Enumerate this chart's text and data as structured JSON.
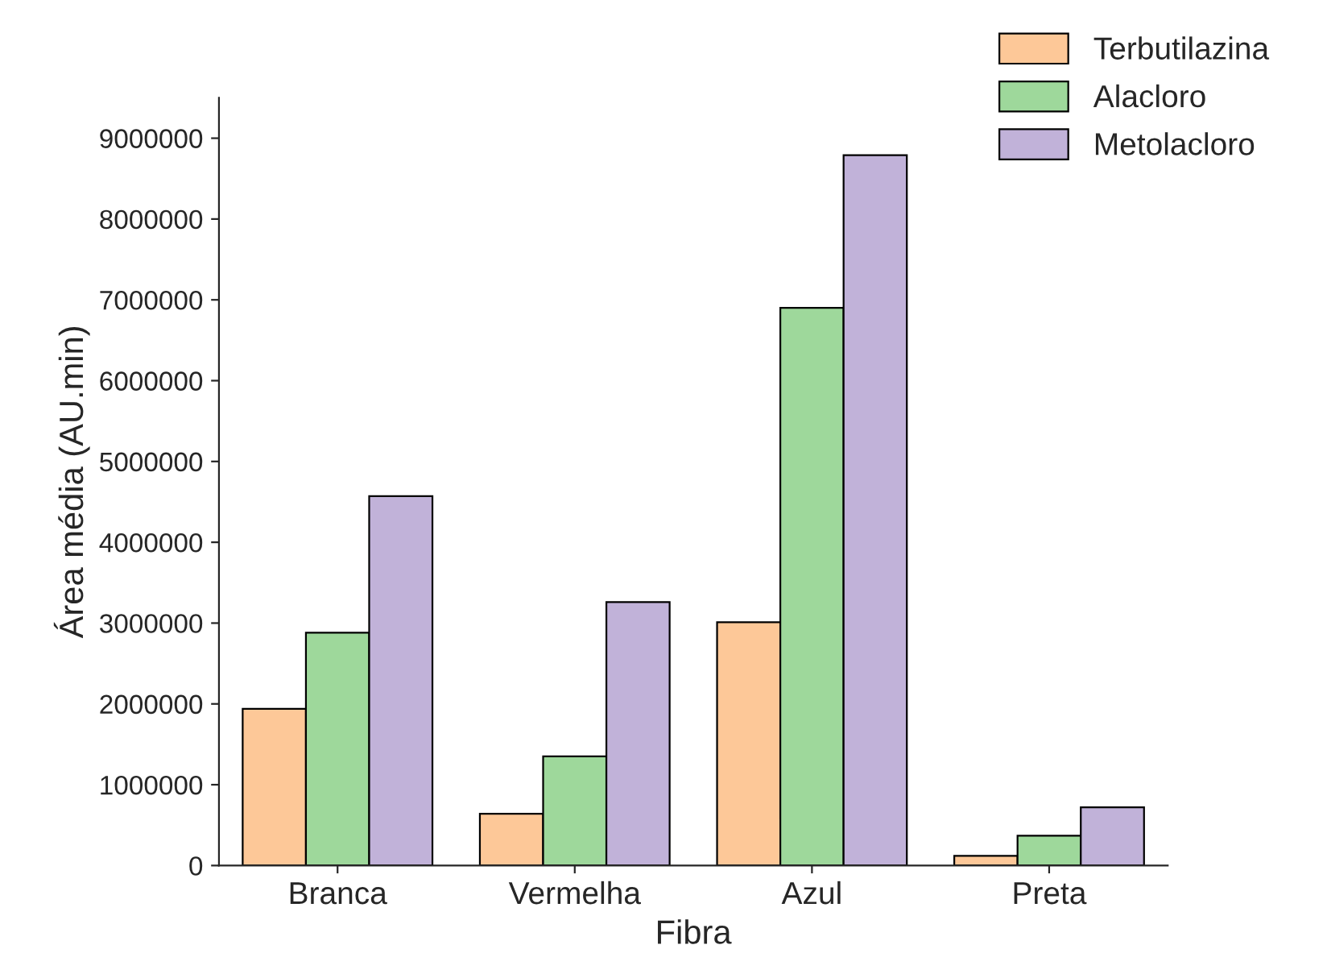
{
  "chart_data": {
    "type": "bar",
    "xlabel": "Fibra",
    "ylabel": "Área média (AU.min)",
    "categories": [
      "Branca",
      "Vermelha",
      "Azul",
      "Preta"
    ],
    "series": [
      {
        "name": "Terbutilazina",
        "color": "#fdc898",
        "values": [
          1940000,
          640000,
          3010000,
          120000
        ]
      },
      {
        "name": "Alacloro",
        "color": "#9ed89b",
        "values": [
          2880000,
          1350000,
          6900000,
          370000
        ]
      },
      {
        "name": "Metolacloro",
        "color": "#c1b2d9",
        "values": [
          4570000,
          3260000,
          8790000,
          720000
        ]
      }
    ],
    "ylim": [
      0,
      9500000
    ],
    "yticks": [
      0,
      1000000,
      2000000,
      3000000,
      4000000,
      5000000,
      6000000,
      7000000,
      8000000,
      9000000
    ],
    "grid": false,
    "legend": "top right"
  }
}
